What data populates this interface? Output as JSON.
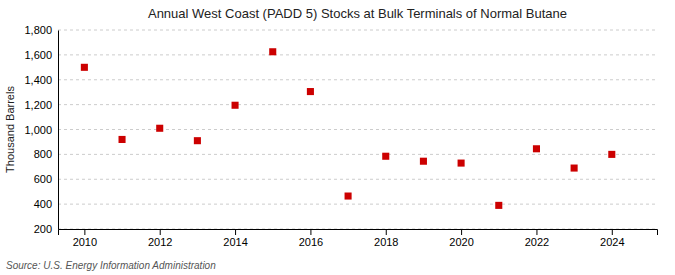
{
  "chart_data": {
    "type": "scatter",
    "title": "Annual West Coast (PADD 5) Stocks at Bulk Terminals of Normal Butane",
    "ylabel": "Thousand Barrels",
    "annotation": "Source: U.S. Energy Information Administration",
    "x": [
      2010,
      2011,
      2012,
      2013,
      2014,
      2015,
      2016,
      2017,
      2018,
      2019,
      2020,
      2021,
      2022,
      2023,
      2024
    ],
    "values": [
      1500,
      920,
      1010,
      910,
      1195,
      1625,
      1305,
      465,
      785,
      745,
      730,
      390,
      845,
      690,
      800
    ],
    "color": "#cc0000",
    "marker": "square",
    "xlim": [
      2009.3,
      2025.2
    ],
    "xticks": [
      2010,
      2012,
      2014,
      2016,
      2018,
      2020,
      2022,
      2024
    ],
    "ylim": [
      200,
      1800
    ],
    "yticks": [
      200,
      400,
      600,
      800,
      {
        "value": 1000,
        "label": "1,000"
      },
      {
        "value": 1200,
        "label": "1,200"
      },
      {
        "value": 1400,
        "label": "1,400"
      },
      {
        "value": 1600,
        "label": "1,600"
      },
      {
        "value": 1800,
        "label": "1,800"
      }
    ],
    "grid": true
  }
}
